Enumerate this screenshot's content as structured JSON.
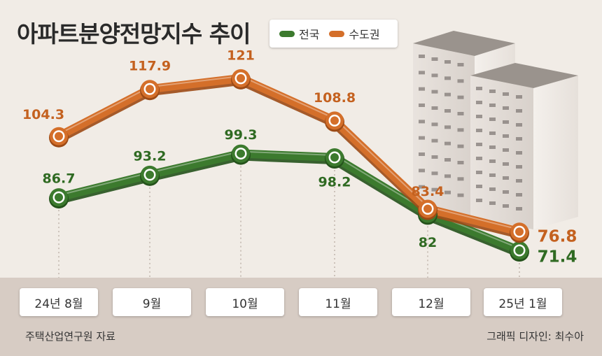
{
  "title": "아파트분양전망지수 추이",
  "legend": [
    {
      "label": "전국",
      "color": "#3c7a2e"
    },
    {
      "label": "수도권",
      "color": "#d46f2a"
    }
  ],
  "source": "주택산업연구원 자료",
  "credit": "그래픽 디자인: 최수아",
  "chart_data": {
    "type": "line",
    "title": "아파트분양전망지수 추이",
    "categories": [
      "24년 8월",
      "9월",
      "10월",
      "11월",
      "12월",
      "25년 1월"
    ],
    "series": [
      {
        "name": "전국",
        "color": "#3c7a2e",
        "values": [
          86.7,
          93.2,
          99.3,
          98.2,
          82,
          71.4
        ],
        "labels": [
          "86.7",
          "93.2",
          "99.3",
          "98.2",
          "82",
          "71.4"
        ]
      },
      {
        "name": "수도권",
        "color": "#d46f2a",
        "values": [
          104.3,
          117.9,
          121,
          108.8,
          83.4,
          76.8
        ],
        "labels": [
          "104.3",
          "117.9",
          "121",
          "108.8",
          "83.4",
          "76.8"
        ]
      }
    ],
    "grid": false,
    "legend_position": "top"
  }
}
